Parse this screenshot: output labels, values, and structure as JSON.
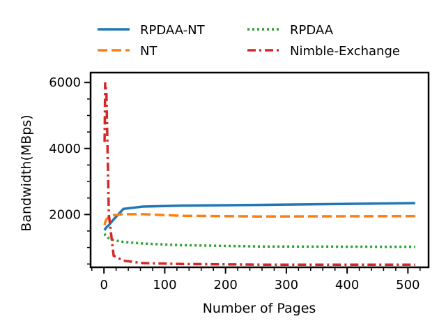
{
  "chart_data": {
    "type": "line",
    "title": "",
    "xlabel": "Number of Pages",
    "ylabel": "Bandwidth(MBps)",
    "xlim": [
      -22,
      534
    ],
    "ylim": [
      400,
      6300
    ],
    "xticks": [
      0,
      100,
      200,
      300,
      400,
      500
    ],
    "xtick_labels": [
      "0",
      "100",
      "200",
      "300",
      "400",
      "500"
    ],
    "yticks": [
      2000,
      4000,
      6000
    ],
    "ytick_labels": [
      "2000",
      "4000",
      "6000"
    ],
    "grid": false,
    "legend": "top-center, outside, 2 columns",
    "series": [
      {
        "name": "RPDAA-NT",
        "color": "#1f77b4",
        "linestyle": "solid",
        "x": [
          1,
          2,
          4,
          8,
          16,
          32,
          64,
          128,
          256,
          512
        ],
        "y": [
          1520,
          1560,
          1610,
          1680,
          1850,
          2170,
          2240,
          2270,
          2290,
          2345
        ]
      },
      {
        "name": "NT",
        "color": "#ff7f0e",
        "linestyle": "dashed",
        "x": [
          1,
          2,
          4,
          8,
          16,
          32,
          64,
          128,
          256,
          512
        ],
        "y": [
          1680,
          1760,
          1850,
          1930,
          1980,
          2010,
          2010,
          1960,
          1940,
          1950
        ]
      },
      {
        "name": "RPDAA",
        "color": "#2ca02c",
        "linestyle": "dotted",
        "x": [
          1,
          2,
          4,
          8,
          16,
          32,
          64,
          128,
          256,
          512
        ],
        "y": [
          1420,
          1380,
          1340,
          1280,
          1220,
          1170,
          1120,
          1070,
          1030,
          1020
        ]
      },
      {
        "name": "Nimble-Exchange",
        "color": "#d62728",
        "linestyle": "dashdot",
        "x": [
          1,
          2,
          4,
          8,
          16,
          32,
          64,
          128,
          256,
          512
        ],
        "y": [
          4200,
          6000,
          5700,
          2000,
          750,
          600,
          530,
          500,
          480,
          480
        ]
      }
    ]
  }
}
